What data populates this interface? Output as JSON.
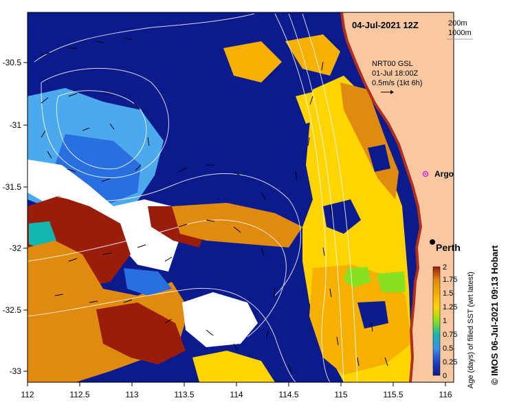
{
  "map": {
    "date_label": "04-Jul-2021 12Z",
    "depth_labels": [
      "200m",
      "1000m"
    ],
    "current_source": "NRT00 GSL",
    "current_date": "01-Jul 18:00Z",
    "current_scale": "0.5m/s (1kt 6h)",
    "places": [
      {
        "name": "Argo",
        "lon": 115.79,
        "lat": -31.5
      },
      {
        "name": "Perth",
        "lon": 115.86,
        "lat": -31.95
      }
    ],
    "lon_range": [
      112,
      116.1
    ],
    "lat_range": [
      -33.1,
      -30.07
    ],
    "lon_ticks": [
      "112",
      "112.5",
      "113",
      "113.5",
      "114",
      "114.5",
      "115",
      "115.5",
      "116"
    ],
    "lat_ticks": [
      "-30.5",
      "-31",
      "-31.5",
      "-32",
      "-32.5",
      "-33"
    ],
    "credit": "© IMOS 06-Jul-2021 09:13 Hobart",
    "colors": {
      "land": "#f9c8a0",
      "coast": "#b0301a",
      "age_0": "#0b1a8c",
      "age_0_25": "#2a6fe0",
      "age_0_5": "#4da9ee",
      "age_0_75": "#14b7b0",
      "age_1": "#88e020",
      "age_1_25": "#ffd400",
      "age_1_5": "#f5b000",
      "age_1_75": "#e08a10",
      "age_2": "#9a1d0b"
    }
  },
  "colorbar": {
    "title": "Age (days) of filled SST (wrt latest)",
    "ticks": [
      "0",
      "0.25",
      "0.5",
      "0.75",
      "1",
      "1.25",
      "1.5",
      "1.75",
      "2"
    ]
  }
}
